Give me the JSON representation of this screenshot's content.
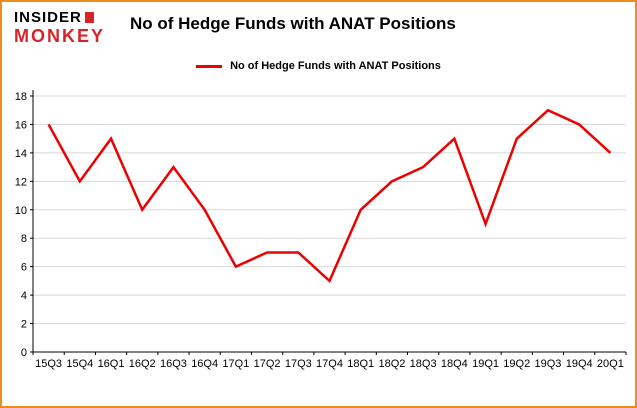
{
  "logo": {
    "line1": "INSIDER",
    "line2": "MONKEY"
  },
  "header": {
    "title": "No of Hedge Funds with ANAT Positions"
  },
  "legend": {
    "label": "No of Hedge Funds with ANAT Positions"
  },
  "colors": {
    "line": "#ec0000",
    "frame": "#f08c1e",
    "grid": "#d8d8d8",
    "axis": "#000000",
    "logo_red": "#d8232a"
  },
  "chart_data": {
    "type": "line",
    "title": "No of Hedge Funds with ANAT Positions",
    "xlabel": "",
    "ylabel": "",
    "categories": [
      "15Q3",
      "15Q4",
      "16Q1",
      "16Q2",
      "16Q3",
      "16Q4",
      "17Q1",
      "17Q2",
      "17Q3",
      "17Q4",
      "18Q1",
      "18Q2",
      "18Q3",
      "18Q4",
      "19Q1",
      "19Q2",
      "19Q3",
      "19Q4",
      "20Q1"
    ],
    "series": [
      {
        "name": "No of Hedge Funds with ANAT Positions",
        "values": [
          16,
          12,
          15,
          10,
          13,
          10,
          6,
          7,
          7,
          5,
          10,
          12,
          13,
          15,
          9,
          15,
          17,
          16,
          14
        ]
      }
    ],
    "ylim": [
      0,
      18
    ],
    "yticks": [
      0,
      2,
      4,
      6,
      8,
      10,
      12,
      14,
      16,
      18
    ],
    "grid": true,
    "legend_position": "top-center"
  }
}
